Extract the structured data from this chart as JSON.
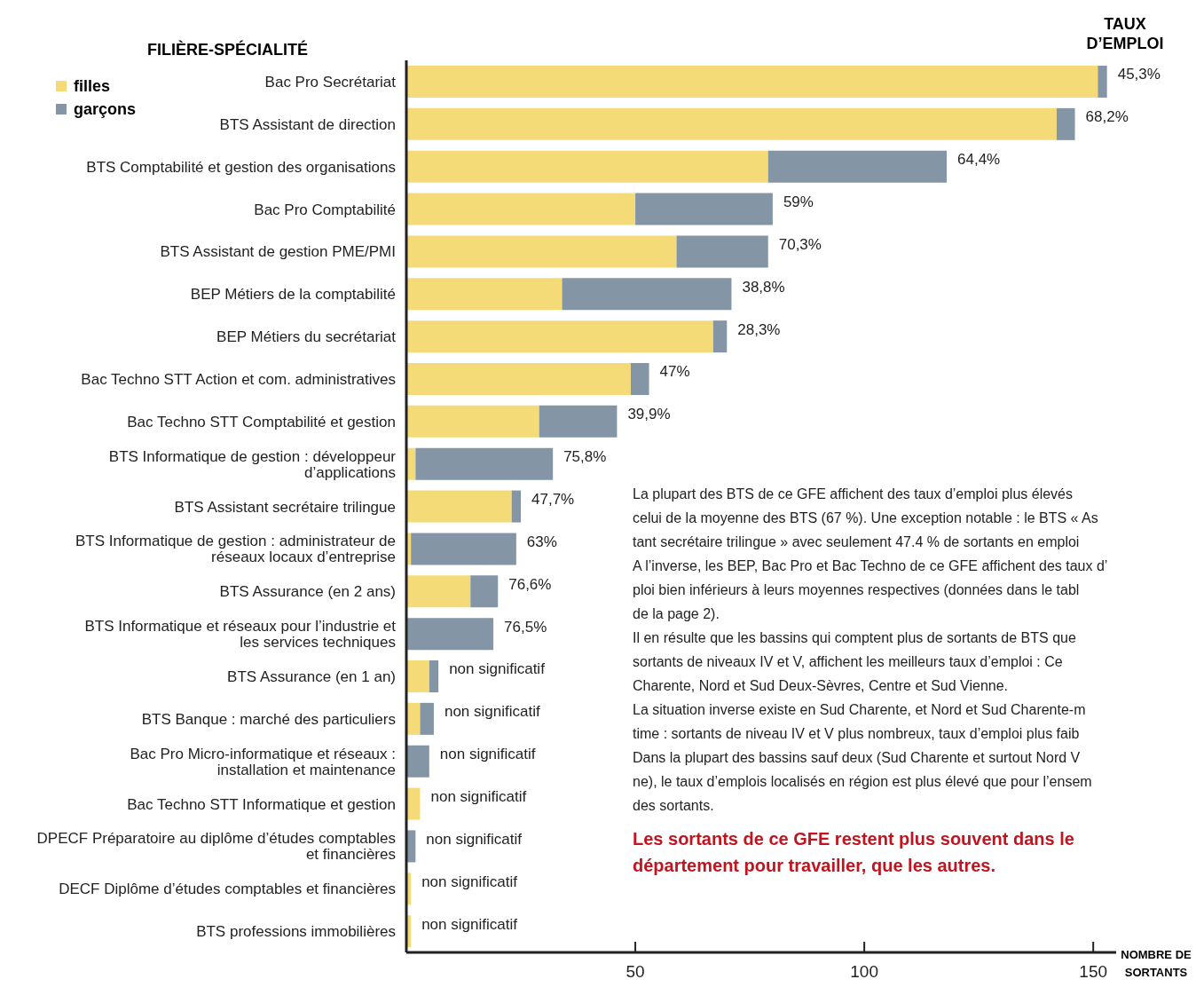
{
  "chart_data": {
    "type": "bar",
    "orientation": "horizontal",
    "stacked": true,
    "ylabel": "FILIÈRE-SPÉCIALITÉ",
    "xlabel": "NOMBRE DE SORTANTS",
    "categories": [
      "Bac Pro Secrétariat",
      "BTS Assistant de direction",
      "BTS Comptabilité et gestion des organisations",
      "Bac Pro Comptabilité",
      "BTS Assistant de gestion PME/PMI",
      "BEP Métiers de la comptabilité",
      "BEP Métiers du secrétariat",
      "Bac Techno STT Action et com. administratives",
      "Bac Techno STT Comptabilité et gestion",
      "BTS Informatique de gestion : développeur d’applications",
      "BTS Assistant secrétaire trilingue",
      "BTS Informatique de gestion : administrateur de réseaux locaux d’entreprise",
      "BTS Assurance (en 2 ans)",
      "BTS Informatique et réseaux pour l’industrie et les services techniques",
      "BTS Assurance (en 1 an)",
      "BTS Banque : marché des particuliers",
      "Bac Pro Micro-informatique et réseaux : installation et maintenance",
      "Bac Techno STT Informatique et gestion",
      "DPECF Préparatoire au diplôme d’études comptables et financières",
      "DECF Diplôme d’études comptables et financières",
      "BTS professions immobilières"
    ],
    "series": [
      {
        "name": "filles",
        "color": "#f4db78",
        "values": [
          151,
          142,
          79,
          50,
          59,
          34,
          67,
          49,
          29,
          2,
          23,
          1,
          14,
          0,
          5,
          3,
          0,
          3,
          0,
          1,
          1
        ]
      },
      {
        "name": "garçons",
        "color": "#8496a6",
        "values": [
          2,
          4,
          39,
          30,
          20,
          37,
          3,
          4,
          17,
          30,
          2,
          23,
          6,
          19,
          2,
          3,
          5,
          0,
          2,
          0,
          0
        ]
      }
    ],
    "xlim": [
      0,
      155
    ],
    "xticks": [
      50,
      100,
      150
    ],
    "grid": false,
    "legend": "top left",
    "annotations": [
      "TAUX D’EMPLOI",
      "La plupart des BTS de ce GFE affichent des taux d’emploi plus élevés\ncelui de la moyenne des BTS (67 %). Une exception notable : le BTS « As\ntant secrétaire trilingue » avec seulement 47.4 % de sortants en emploi\nA l’inverse, les BEP, Bac Pro et Bac Techno de ce GFE affichent des taux d’\nploi bien inférieurs à leurs moyennes respectives (données dans le tabl\nde la page 2).\nIl en résulte que les bassins qui comptent plus de sortants de BTS que\nsortants de niveaux IV et V, affichent les meilleurs taux d’emploi : Ce\nCharente, Nord et Sud Deux-Sèvres, Centre et Sud Vienne.\nLa situation inverse existe en Sud Charente, et Nord et Sud Charente-m\ntime : sortants de niveau IV et V plus nombreux, taux d’emploi plus faib\nDans la plupart des bassins sauf deux (Sud Charente et surtout Nord V\nne), le taux d’emplois localisés en région est plus élevé que pour l’ensem\ndes sortants.",
      "Les sortants de ce GFE restent plus souvent dans le\ndépartement pour travailler, que les autres.",
      {
        "text": "45,3%",
        "x": 153,
        "y": "Bac Pro Secrétariat"
      },
      {
        "text": "68,2%",
        "x": 146,
        "y": "BTS Assistant de direction"
      },
      {
        "text": "64,4%",
        "x": 118,
        "y": "BTS Comptabilité et gestion des organisations"
      },
      {
        "text": "59%",
        "x": 80,
        "y": "Bac Pro Comptabilité"
      },
      {
        "text": "70,3%",
        "x": 79,
        "y": "BTS Assistant de gestion PME/PMI"
      },
      {
        "text": "38,8%",
        "x": 71,
        "y": "BEP Métiers de la comptabilité"
      },
      {
        "text": "28,3%",
        "x": 70,
        "y": "BEP Métiers du secrétariat"
      },
      {
        "text": "47%",
        "x": 53,
        "y": "Bac Techno STT Action et com. administratives"
      },
      {
        "text": "39,9%",
        "x": 46,
        "y": "Bac Techno STT Comptabilité et gestion"
      },
      {
        "text": "75,8%",
        "x": 32,
        "y": "BTS Informatique de gestion : développeur d’applications"
      },
      {
        "text": "47,7%",
        "x": 25,
        "y": "BTS Assistant secrétaire trilingue"
      },
      {
        "text": "63%",
        "x": 24,
        "y": "BTS Informatique de gestion : administrateur de réseaux locaux d’entreprise"
      },
      {
        "text": "76,6%",
        "x": 20,
        "y": "BTS Assurance (en 2 ans)"
      },
      {
        "text": "76,5%",
        "x": 19,
        "y": "BTS Informatique et réseaux pour l’industrie et les services techniques"
      },
      {
        "text": "non significatif",
        "x": 7,
        "y": "BTS Assurance (en 1 an)"
      },
      {
        "text": "non significatif",
        "x": 6,
        "y": "BTS Banque : marché des particuliers"
      },
      {
        "text": "non significatif",
        "x": 5,
        "y": "Bac Pro Micro-informatique et réseaux : installation et maintenance"
      },
      {
        "text": "non significatif",
        "x": 3,
        "y": "Bac Techno STT Informatique et gestion"
      },
      {
        "text": "non significatif",
        "x": 2,
        "y": "DPECF Préparatoire au diplôme d’études comptables et financières"
      },
      {
        "text": "non significatif",
        "x": 1,
        "y": "DECF Diplôme d’études comptables et financières"
      },
      {
        "text": "non significatif",
        "x": 1,
        "y": "BTS professions immobilières"
      }
    ]
  }
}
